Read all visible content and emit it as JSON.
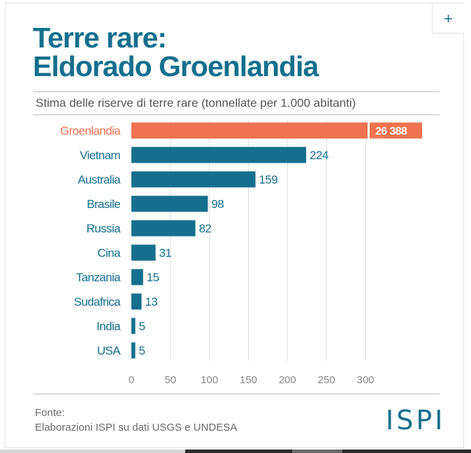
{
  "title": {
    "line1": "Terre rare:",
    "line2": "Eldorado Groenlandia"
  },
  "subtitle": "Stima delle riserve di terre rare (tonnellate per 1.000 abitanti)",
  "source": {
    "label": "Fonte:",
    "text": "Elaborazioni ISPI su dati USGS e UNDESA"
  },
  "logo": "ISPI",
  "colors": {
    "bar": "#156f8e",
    "highlight": "#ef7350",
    "gridline": "#dddddd"
  },
  "chart_data": {
    "type": "bar",
    "orientation": "horizontal",
    "categories": [
      "Groenlandia",
      "Vietnam",
      "Australia",
      "Brasile",
      "Russia",
      "Cina",
      "Tanzania",
      "Sudafrica",
      "India",
      "USA"
    ],
    "values": [
      26388,
      224,
      159,
      98,
      82,
      31,
      15,
      13,
      5,
      5
    ],
    "value_labels": [
      "26 388",
      "224",
      "159",
      "98",
      "82",
      "31",
      "15",
      "13",
      "5",
      "5"
    ],
    "highlight_category": "Groenlandia",
    "axis_break": true,
    "xlim": [
      0,
      300
    ],
    "xticks": [
      0,
      50,
      100,
      150,
      200,
      250,
      300
    ],
    "grid": true
  }
}
